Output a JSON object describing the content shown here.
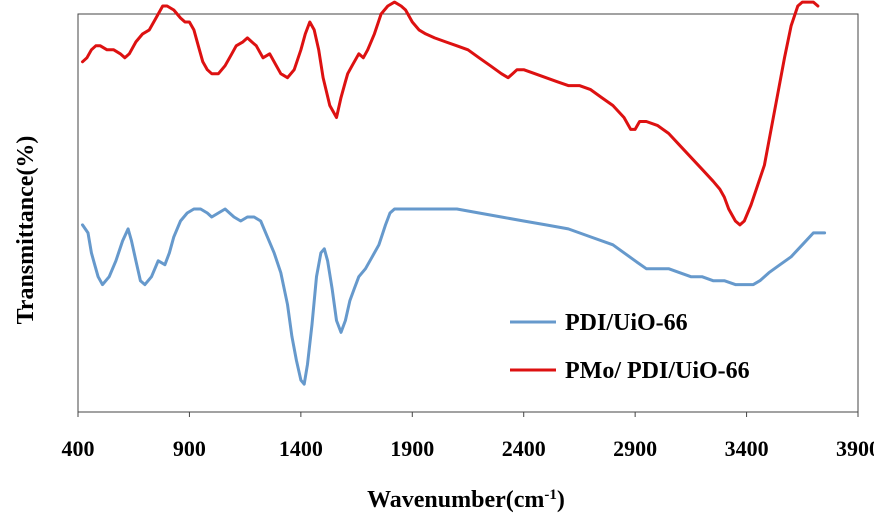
{
  "chart_data": {
    "type": "line",
    "xlabel": "Wavenumber(cm",
    "xlabel_sup": "-1",
    "xlabel_close": ")",
    "ylabel": "Transmittance(%)",
    "xlim": [
      400,
      3900
    ],
    "ylim": [
      0,
      100
    ],
    "grid": false,
    "legend_position": "bottom-right",
    "x_ticks": [
      400,
      900,
      1400,
      1900,
      2400,
      2900,
      3400,
      3900
    ],
    "x_tick_labels": [
      "400",
      "900",
      "1400",
      "1900",
      "2400",
      "2900",
      "3400",
      "3900"
    ],
    "series": [
      {
        "name": "PDI/UiO-66",
        "color": "#6699cc",
        "x": [
          420,
          445,
          460,
          475,
          490,
          510,
          540,
          570,
          600,
          625,
          640,
          660,
          680,
          700,
          730,
          760,
          790,
          810,
          830,
          860,
          890,
          920,
          950,
          980,
          1000,
          1030,
          1060,
          1080,
          1100,
          1130,
          1160,
          1190,
          1220,
          1250,
          1280,
          1310,
          1340,
          1360,
          1380,
          1400,
          1415,
          1430,
          1450,
          1470,
          1490,
          1505,
          1520,
          1540,
          1560,
          1580,
          1600,
          1620,
          1640,
          1660,
          1690,
          1720,
          1750,
          1780,
          1800,
          1820,
          1860,
          1900,
          1960,
          2000,
          2100,
          2200,
          2300,
          2400,
          2500,
          2600,
          2700,
          2800,
          2850,
          2900,
          2950,
          3000,
          3050,
          3100,
          3150,
          3200,
          3250,
          3300,
          3350,
          3400,
          3430,
          3460,
          3500,
          3550,
          3600,
          3650,
          3700,
          3750
        ],
        "y": [
          47,
          45,
          40,
          37,
          34,
          32,
          34,
          38,
          43,
          46,
          43,
          38,
          33,
          32,
          34,
          38,
          37,
          40,
          44,
          48,
          50,
          51,
          51,
          50,
          49,
          50,
          51,
          50,
          49,
          48,
          49,
          49,
          48,
          44,
          40,
          35,
          27,
          19,
          13,
          8,
          7,
          12,
          22,
          34,
          40,
          41,
          38,
          31,
          23,
          20,
          23,
          28,
          31,
          34,
          36,
          39,
          42,
          47,
          50,
          51,
          51,
          51,
          51,
          51,
          51,
          50,
          49,
          48,
          47,
          46,
          44,
          42,
          40,
          38,
          36,
          36,
          36,
          35,
          34,
          34,
          33,
          33,
          32,
          32,
          32,
          33,
          35,
          37,
          39,
          42,
          45,
          45
        ]
      },
      {
        "name": "PMo/ PDI/UiO-66",
        "color": "#dd1111",
        "x": [
          420,
          440,
          460,
          480,
          500,
          530,
          560,
          590,
          610,
          630,
          660,
          690,
          720,
          750,
          780,
          800,
          830,
          860,
          880,
          900,
          920,
          940,
          960,
          980,
          1000,
          1030,
          1060,
          1090,
          1110,
          1140,
          1160,
          1180,
          1200,
          1230,
          1260,
          1290,
          1310,
          1340,
          1370,
          1400,
          1420,
          1440,
          1460,
          1480,
          1500,
          1530,
          1560,
          1580,
          1600,
          1610,
          1630,
          1660,
          1680,
          1700,
          1730,
          1760,
          1790,
          1820,
          1850,
          1870,
          1900,
          1930,
          1960,
          2000,
          2050,
          2100,
          2150,
          2200,
          2250,
          2300,
          2330,
          2350,
          2370,
          2400,
          2450,
          2500,
          2550,
          2600,
          2650,
          2700,
          2750,
          2800,
          2850,
          2880,
          2900,
          2920,
          2950,
          3000,
          3050,
          3100,
          3150,
          3200,
          3250,
          3280,
          3300,
          3320,
          3350,
          3370,
          3390,
          3420,
          3450,
          3480,
          3510,
          3540,
          3570,
          3600,
          3630,
          3650,
          3670,
          3700,
          3720
        ],
        "y": [
          88,
          89,
          91,
          92,
          92,
          91,
          91,
          90,
          89,
          90,
          93,
          95,
          96,
          99,
          102,
          102,
          101,
          99,
          98,
          98,
          96,
          92,
          88,
          86,
          85,
          85,
          87,
          90,
          92,
          93,
          94,
          93,
          92,
          89,
          90,
          87,
          85,
          84,
          86,
          91,
          95,
          98,
          96,
          91,
          84,
          77,
          74,
          79,
          83,
          85,
          87,
          90,
          89,
          91,
          95,
          100,
          102,
          103,
          102,
          101,
          98,
          96,
          95,
          94,
          93,
          92,
          91,
          89,
          87,
          85,
          84,
          85,
          86,
          86,
          85,
          84,
          83,
          82,
          82,
          81,
          79,
          77,
          74,
          71,
          71,
          73,
          73,
          72,
          70,
          67,
          64,
          61,
          58,
          56,
          54,
          51,
          48,
          47,
          48,
          52,
          57,
          62,
          71,
          80,
          89,
          97,
          102,
          103,
          103,
          103,
          102
        ]
      }
    ]
  }
}
